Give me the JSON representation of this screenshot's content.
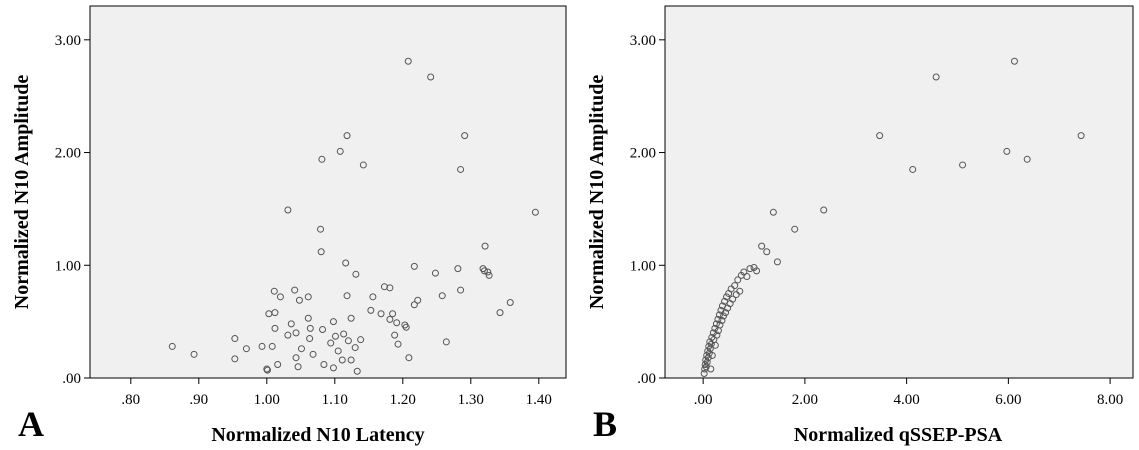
{
  "chart_data": [
    {
      "type": "scatter",
      "panel_label": "A",
      "xlabel": "Normalized N10 Latency",
      "ylabel": "Normalized N10 Amplitude",
      "xlim": [
        0.74,
        1.44
      ],
      "ylim": [
        0.0,
        3.3
      ],
      "x_ticks": [
        0.8,
        0.9,
        1.0,
        1.1,
        1.2,
        1.3,
        1.4
      ],
      "x_tick_labels": [
        ".80",
        ".90",
        "1.00",
        "1.10",
        "1.20",
        "1.30",
        "1.40"
      ],
      "y_ticks": [
        0.0,
        1.0,
        2.0,
        3.0
      ],
      "y_tick_labels": [
        ".00",
        "1.00",
        "2.00",
        "3.00"
      ],
      "grid": false,
      "points": [
        {
          "x": 0.861,
          "y": 0.28
        },
        {
          "x": 0.893,
          "y": 0.21
        },
        {
          "x": 0.953,
          "y": 0.35
        },
        {
          "x": 0.953,
          "y": 0.17
        },
        {
          "x": 0.97,
          "y": 0.26
        },
        {
          "x": 0.993,
          "y": 0.28
        },
        {
          "x": 1.0,
          "y": 0.08
        },
        {
          "x": 1.001,
          "y": 0.07
        },
        {
          "x": 1.003,
          "y": 0.57
        },
        {
          "x": 1.008,
          "y": 0.28
        },
        {
          "x": 1.011,
          "y": 0.77
        },
        {
          "x": 1.012,
          "y": 0.58
        },
        {
          "x": 1.012,
          "y": 0.44
        },
        {
          "x": 1.016,
          "y": 0.12
        },
        {
          "x": 1.02,
          "y": 0.72
        },
        {
          "x": 1.031,
          "y": 0.38
        },
        {
          "x": 1.031,
          "y": 1.49
        },
        {
          "x": 1.036,
          "y": 0.48
        },
        {
          "x": 1.041,
          "y": 0.78
        },
        {
          "x": 1.043,
          "y": 0.4
        },
        {
          "x": 1.043,
          "y": 0.18
        },
        {
          "x": 1.046,
          "y": 0.1
        },
        {
          "x": 1.048,
          "y": 0.69
        },
        {
          "x": 1.051,
          "y": 0.26
        },
        {
          "x": 1.061,
          "y": 0.72
        },
        {
          "x": 1.061,
          "y": 0.53
        },
        {
          "x": 1.063,
          "y": 0.35
        },
        {
          "x": 1.064,
          "y": 0.44
        },
        {
          "x": 1.068,
          "y": 0.21
        },
        {
          "x": 1.079,
          "y": 1.32
        },
        {
          "x": 1.08,
          "y": 1.12
        },
        {
          "x": 1.081,
          "y": 1.94
        },
        {
          "x": 1.082,
          "y": 0.43
        },
        {
          "x": 1.084,
          "y": 0.12
        },
        {
          "x": 1.094,
          "y": 0.31
        },
        {
          "x": 1.098,
          "y": 0.5
        },
        {
          "x": 1.098,
          "y": 0.09
        },
        {
          "x": 1.101,
          "y": 0.37
        },
        {
          "x": 1.105,
          "y": 0.24
        },
        {
          "x": 1.108,
          "y": 2.01
        },
        {
          "x": 1.111,
          "y": 0.16
        },
        {
          "x": 1.113,
          "y": 0.39
        },
        {
          "x": 1.116,
          "y": 1.02
        },
        {
          "x": 1.118,
          "y": 2.15
        },
        {
          "x": 1.118,
          "y": 0.73
        },
        {
          "x": 1.12,
          "y": 0.33
        },
        {
          "x": 1.124,
          "y": 0.53
        },
        {
          "x": 1.124,
          "y": 0.16
        },
        {
          "x": 1.13,
          "y": 0.27
        },
        {
          "x": 1.131,
          "y": 0.92
        },
        {
          "x": 1.133,
          "y": 0.06
        },
        {
          "x": 1.138,
          "y": 0.34
        },
        {
          "x": 1.142,
          "y": 1.89
        },
        {
          "x": 1.153,
          "y": 0.6
        },
        {
          "x": 1.156,
          "y": 0.72
        },
        {
          "x": 1.168,
          "y": 0.57
        },
        {
          "x": 1.173,
          "y": 0.81
        },
        {
          "x": 1.181,
          "y": 0.8
        },
        {
          "x": 1.181,
          "y": 0.52
        },
        {
          "x": 1.185,
          "y": 0.57
        },
        {
          "x": 1.188,
          "y": 0.38
        },
        {
          "x": 1.191,
          "y": 0.49
        },
        {
          "x": 1.193,
          "y": 0.3
        },
        {
          "x": 1.203,
          "y": 0.47
        },
        {
          "x": 1.205,
          "y": 0.45
        },
        {
          "x": 1.208,
          "y": 2.81
        },
        {
          "x": 1.209,
          "y": 0.18
        },
        {
          "x": 1.217,
          "y": 0.99
        },
        {
          "x": 1.217,
          "y": 0.65
        },
        {
          "x": 1.222,
          "y": 0.69
        },
        {
          "x": 1.241,
          "y": 2.67
        },
        {
          "x": 1.248,
          "y": 0.93
        },
        {
          "x": 1.258,
          "y": 0.73
        },
        {
          "x": 1.264,
          "y": 0.32
        },
        {
          "x": 1.281,
          "y": 0.97
        },
        {
          "x": 1.285,
          "y": 1.85
        },
        {
          "x": 1.285,
          "y": 0.78
        },
        {
          "x": 1.291,
          "y": 2.15
        },
        {
          "x": 1.318,
          "y": 0.97
        },
        {
          "x": 1.32,
          "y": 0.95
        },
        {
          "x": 1.321,
          "y": 1.17
        },
        {
          "x": 1.325,
          "y": 0.94
        },
        {
          "x": 1.327,
          "y": 0.91
        },
        {
          "x": 1.343,
          "y": 0.58
        },
        {
          "x": 1.358,
          "y": 0.67
        },
        {
          "x": 1.395,
          "y": 1.47
        }
      ]
    },
    {
      "type": "scatter",
      "panel_label": "B",
      "xlabel": "Normalized qSSEP-PSA",
      "ylabel": "Normalized N10 Amplitude",
      "xlim": [
        -0.75,
        8.45
      ],
      "ylim": [
        0.0,
        3.3
      ],
      "x_ticks": [
        0,
        2,
        4,
        6,
        8
      ],
      "x_tick_labels": [
        ".00",
        "2.00",
        "4.00",
        "6.00",
        "8.00"
      ],
      "y_ticks": [
        0.0,
        1.0,
        2.0,
        3.0
      ],
      "y_tick_labels": [
        ".00",
        "1.00",
        "2.00",
        "3.00"
      ],
      "grid": false,
      "points": [
        {
          "x": 0.02,
          "y": 0.04
        },
        {
          "x": 0.03,
          "y": 0.08
        },
        {
          "x": 0.04,
          "y": 0.12
        },
        {
          "x": 0.05,
          "y": 0.16
        },
        {
          "x": 0.06,
          "y": 0.1
        },
        {
          "x": 0.07,
          "y": 0.2
        },
        {
          "x": 0.08,
          "y": 0.14
        },
        {
          "x": 0.09,
          "y": 0.24
        },
        {
          "x": 0.1,
          "y": 0.18
        },
        {
          "x": 0.11,
          "y": 0.28
        },
        {
          "x": 0.12,
          "y": 0.22
        },
        {
          "x": 0.13,
          "y": 0.32
        },
        {
          "x": 0.14,
          "y": 0.26
        },
        {
          "x": 0.15,
          "y": 0.08
        },
        {
          "x": 0.16,
          "y": 0.3
        },
        {
          "x": 0.17,
          "y": 0.36
        },
        {
          "x": 0.18,
          "y": 0.2
        },
        {
          "x": 0.2,
          "y": 0.4
        },
        {
          "x": 0.21,
          "y": 0.34
        },
        {
          "x": 0.23,
          "y": 0.44
        },
        {
          "x": 0.24,
          "y": 0.29
        },
        {
          "x": 0.26,
          "y": 0.48
        },
        {
          "x": 0.27,
          "y": 0.38
        },
        {
          "x": 0.29,
          "y": 0.52
        },
        {
          "x": 0.3,
          "y": 0.42
        },
        {
          "x": 0.32,
          "y": 0.56
        },
        {
          "x": 0.33,
          "y": 0.47
        },
        {
          "x": 0.35,
          "y": 0.6
        },
        {
          "x": 0.37,
          "y": 0.51
        },
        {
          "x": 0.38,
          "y": 0.64
        },
        {
          "x": 0.4,
          "y": 0.55
        },
        {
          "x": 0.42,
          "y": 0.68
        },
        {
          "x": 0.44,
          "y": 0.58
        },
        {
          "x": 0.46,
          "y": 0.72
        },
        {
          "x": 0.48,
          "y": 0.62
        },
        {
          "x": 0.5,
          "y": 0.75
        },
        {
          "x": 0.53,
          "y": 0.66
        },
        {
          "x": 0.55,
          "y": 0.79
        },
        {
          "x": 0.58,
          "y": 0.7
        },
        {
          "x": 0.62,
          "y": 0.82
        },
        {
          "x": 0.65,
          "y": 0.74
        },
        {
          "x": 0.68,
          "y": 0.87
        },
        {
          "x": 0.72,
          "y": 0.77
        },
        {
          "x": 0.75,
          "y": 0.91
        },
        {
          "x": 0.8,
          "y": 0.94
        },
        {
          "x": 0.86,
          "y": 0.9
        },
        {
          "x": 0.92,
          "y": 0.97
        },
        {
          "x": 1.0,
          "y": 0.98
        },
        {
          "x": 1.05,
          "y": 0.95
        },
        {
          "x": 1.15,
          "y": 1.17
        },
        {
          "x": 1.25,
          "y": 1.12
        },
        {
          "x": 1.38,
          "y": 1.47
        },
        {
          "x": 1.46,
          "y": 1.03
        },
        {
          "x": 1.8,
          "y": 1.32
        },
        {
          "x": 2.37,
          "y": 1.49
        },
        {
          "x": 3.47,
          "y": 2.15
        },
        {
          "x": 4.12,
          "y": 1.85
        },
        {
          "x": 4.58,
          "y": 2.67
        },
        {
          "x": 5.1,
          "y": 1.89
        },
        {
          "x": 5.97,
          "y": 2.01
        },
        {
          "x": 6.12,
          "y": 2.81
        },
        {
          "x": 6.37,
          "y": 1.94
        },
        {
          "x": 7.43,
          "y": 2.15
        }
      ]
    }
  ]
}
